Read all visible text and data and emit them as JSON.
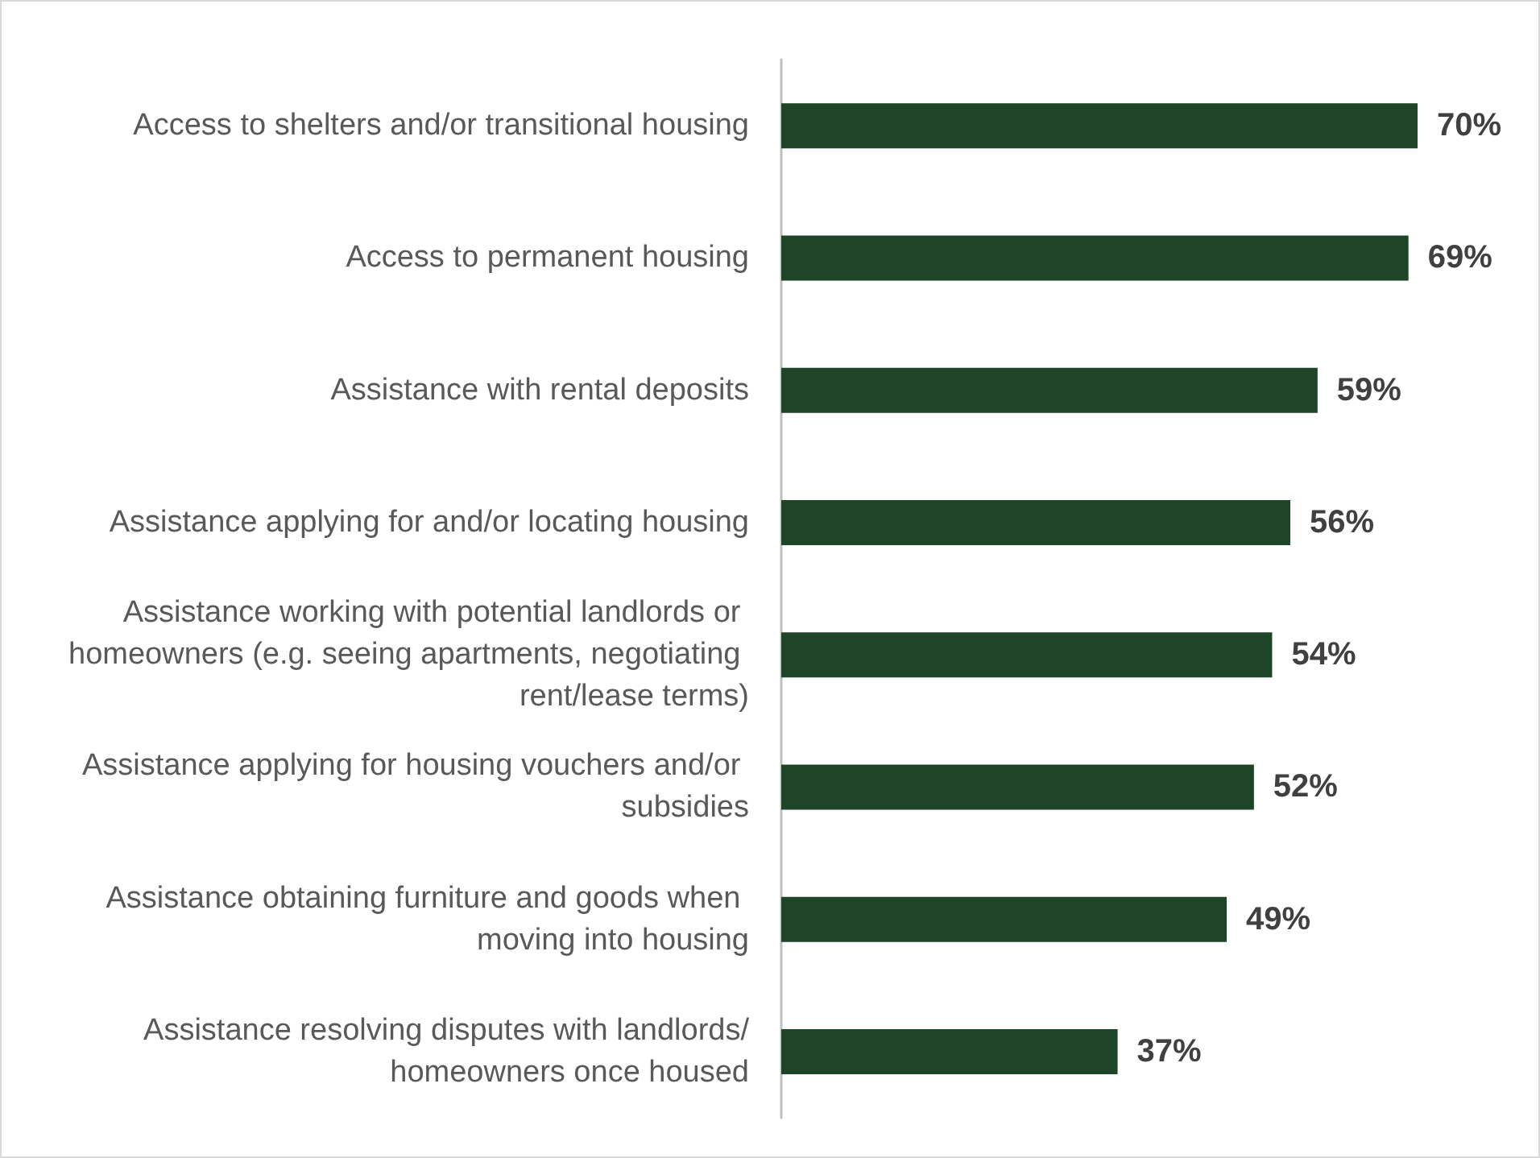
{
  "chart_data": {
    "type": "bar",
    "orientation": "horizontal",
    "categories": [
      "Access to shelters and/or transitional housing",
      "Access to permanent housing",
      "Assistance with rental deposits",
      "Assistance applying for and/or locating housing",
      "Assistance working with potential landlords or homeowners (e.g. seeing apartments, negotiating rent/lease terms)",
      "Assistance applying for housing vouchers and/or subsidies",
      "Assistance obtaining furniture and goods when moving into housing",
      "Assistance resolving disputes with landlords/homeowners once housed"
    ],
    "values": [
      70,
      69,
      59,
      56,
      54,
      52,
      49,
      37
    ],
    "value_labels": [
      "70%",
      "69%",
      "59%",
      "56%",
      "54%",
      "52%",
      "49%",
      "37%"
    ],
    "color": "#1f4529",
    "tick_labels": "y"
  }
}
